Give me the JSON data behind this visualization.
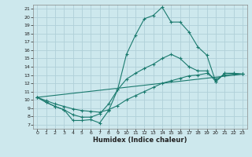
{
  "xlabel": "Humidex (Indice chaleur)",
  "bg_color": "#cde8ed",
  "grid_color": "#b0d0d8",
  "line_color": "#1a7a6e",
  "xlim": [
    -0.5,
    23.5
  ],
  "ylim": [
    6.5,
    21.5
  ],
  "xticks": [
    0,
    1,
    2,
    3,
    4,
    5,
    6,
    7,
    8,
    9,
    10,
    11,
    12,
    13,
    14,
    15,
    16,
    17,
    18,
    19,
    20,
    21,
    22,
    23
  ],
  "yticks": [
    7,
    8,
    9,
    10,
    11,
    12,
    13,
    14,
    15,
    16,
    17,
    18,
    19,
    20,
    21
  ],
  "line1_x": [
    0,
    1,
    2,
    3,
    4,
    5,
    6,
    7,
    8,
    9,
    10,
    11,
    12,
    13,
    14,
    15,
    16,
    17,
    18,
    19,
    20,
    21,
    22,
    23
  ],
  "line1_y": [
    10.3,
    9.7,
    9.2,
    8.8,
    7.5,
    7.5,
    7.6,
    7.2,
    8.7,
    11.2,
    15.5,
    17.8,
    19.8,
    20.2,
    21.2,
    19.4,
    19.4,
    18.2,
    16.4,
    15.4,
    12.2,
    13.2,
    13.2,
    13.1
  ],
  "line2_x": [
    0,
    1,
    2,
    3,
    4,
    5,
    6,
    7,
    8,
    9,
    10,
    11,
    12,
    13,
    14,
    15,
    16,
    17,
    18,
    19,
    20,
    21,
    22,
    23
  ],
  "line2_y": [
    10.3,
    9.7,
    9.2,
    8.8,
    8.2,
    7.9,
    7.9,
    8.3,
    9.5,
    11.2,
    12.5,
    13.2,
    13.8,
    14.3,
    15.0,
    15.5,
    15.0,
    14.0,
    13.5,
    13.5,
    12.2,
    13.2,
    13.2,
    13.1
  ],
  "line3_x": [
    0,
    1,
    2,
    3,
    4,
    5,
    6,
    7,
    8,
    9,
    10,
    11,
    12,
    13,
    14,
    15,
    16,
    17,
    18,
    19,
    20,
    21,
    22,
    23
  ],
  "line3_y": [
    10.3,
    9.9,
    9.5,
    9.2,
    8.9,
    8.7,
    8.6,
    8.5,
    8.8,
    9.3,
    10.0,
    10.5,
    11.0,
    11.5,
    12.0,
    12.3,
    12.6,
    12.9,
    13.0,
    13.2,
    12.5,
    13.0,
    13.1,
    13.1
  ],
  "line4_x": [
    0,
    23
  ],
  "line4_y": [
    10.3,
    13.1
  ]
}
